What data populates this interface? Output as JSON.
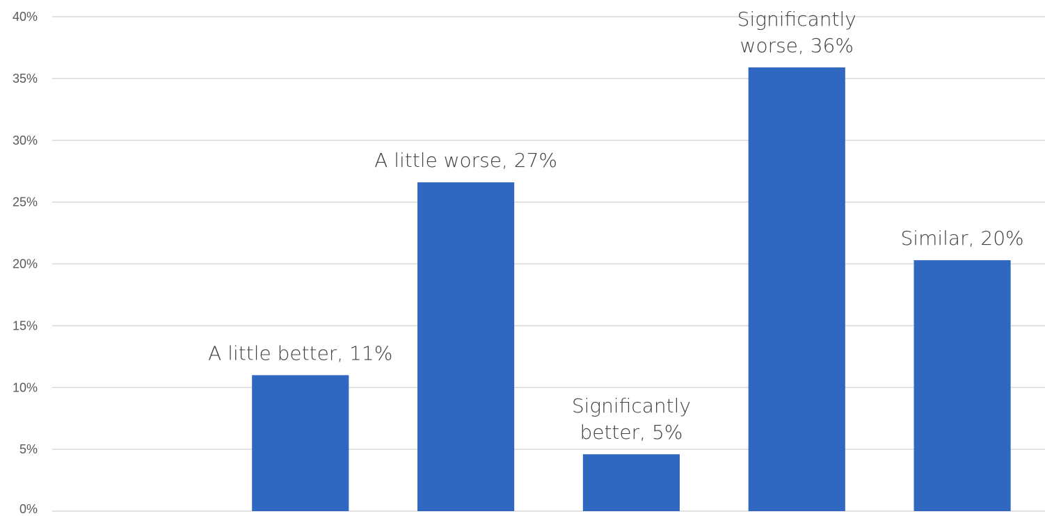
{
  "chart_data": {
    "type": "bar",
    "categories": [
      "",
      "A little better",
      "A little worse",
      "Significantly better",
      "Significantly worse",
      "Similar"
    ],
    "values": [
      null,
      11,
      27,
      5,
      36,
      20
    ],
    "bar_heights_percent": [
      null,
      11.0,
      26.6,
      4.6,
      35.9,
      20.3
    ],
    "data_labels": [
      null,
      [
        "A little better, 11%"
      ],
      [
        "A little worse, 27%"
      ],
      [
        "Significantly",
        "better, 5%"
      ],
      [
        "Significantly",
        "worse, 36%"
      ],
      [
        "Similar, 20%"
      ]
    ],
    "ylim": [
      0,
      40
    ],
    "yticks": [
      0,
      5,
      10,
      15,
      20,
      25,
      30,
      35,
      40
    ],
    "ytick_labels": [
      "0%",
      "5%",
      "10%",
      "15%",
      "20%",
      "25%",
      "30%",
      "35%",
      "40%"
    ],
    "xlabel": "",
    "ylabel": "",
    "title": "",
    "grid": true,
    "legend": "none",
    "bar_color": "#3067C0"
  }
}
